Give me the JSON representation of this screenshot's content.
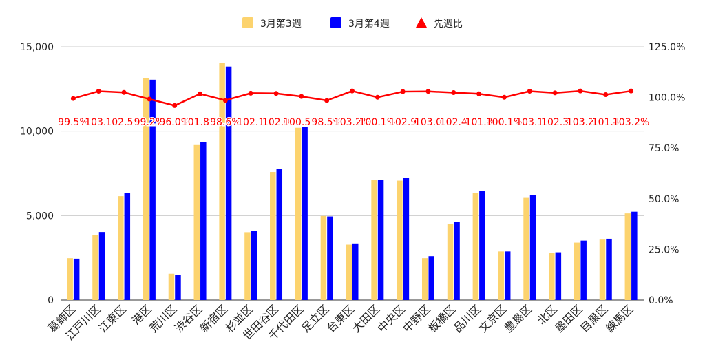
{
  "chart_data": {
    "type": "bar",
    "categories": [
      "葛飾区",
      "江戸川区",
      "江東区",
      "港区",
      "荒川区",
      "渋谷区",
      "新宿区",
      "杉並区",
      "世田谷区",
      "千代田区",
      "足立区",
      "台東区",
      "大田区",
      "中央区",
      "中野区",
      "板橋区",
      "品川区",
      "文京区",
      "豊島区",
      "北区",
      "墨田区",
      "目黒区",
      "練馬区"
    ],
    "series": [
      {
        "name": "3月第3週",
        "type": "bar",
        "axis": "left",
        "color": "#fcd36e",
        "values": [
          2480,
          3850,
          6150,
          13150,
          1560,
          9180,
          14050,
          4020,
          7580,
          10200,
          4980,
          3280,
          7130,
          7070,
          2480,
          4500,
          6330,
          2880,
          6050,
          2780,
          3400,
          3580,
          5130
        ]
      },
      {
        "name": "3月第4週",
        "type": "bar",
        "axis": "left",
        "color": "#0000ff",
        "values": [
          2450,
          4030,
          6320,
          13050,
          1480,
          9350,
          13830,
          4100,
          7760,
          10250,
          4950,
          3350,
          7120,
          7230,
          2600,
          4620,
          6450,
          2880,
          6200,
          2830,
          3520,
          3630,
          5230
        ]
      },
      {
        "name": "先週比",
        "type": "line",
        "axis": "right",
        "color": "#ff0000",
        "values": [
          99.5,
          103.1,
          102.5,
          99.2,
          96.0,
          101.8,
          98.6,
          102.1,
          102.0,
          100.5,
          98.5,
          103.2,
          100.1,
          102.9,
          103.0,
          102.4,
          101.8,
          100.1,
          103.1,
          102.3,
          103.2,
          101.4,
          103.2
        ],
        "labels": [
          "99.5%",
          "103.1",
          "102.5%",
          "99.2%",
          "96.0%",
          "101.8%",
          "98.6%",
          "102.1",
          "102.0",
          "100.5%",
          "98.5%",
          "103.2%",
          "100.1%",
          "102.9",
          "103.0",
          "102.4",
          "101.8",
          "100.1%",
          "103.1",
          "102.3",
          "103.2",
          "101.4",
          "103.2%"
        ]
      }
    ],
    "left_axis": {
      "min": 0,
      "max": 15000,
      "ticks": [
        0,
        5000,
        10000,
        15000
      ],
      "tick_labels": [
        "0",
        "5,000",
        "10,000",
        "15,000"
      ]
    },
    "right_axis": {
      "min": 0,
      "max": 125,
      "ticks": [
        0,
        25,
        50,
        75,
        100,
        125
      ],
      "tick_labels": [
        "0.0%",
        "25.0%",
        "50.0%",
        "75.0%",
        "100.0%",
        "125.0%"
      ]
    },
    "legend_position": "top",
    "grid": true
  }
}
